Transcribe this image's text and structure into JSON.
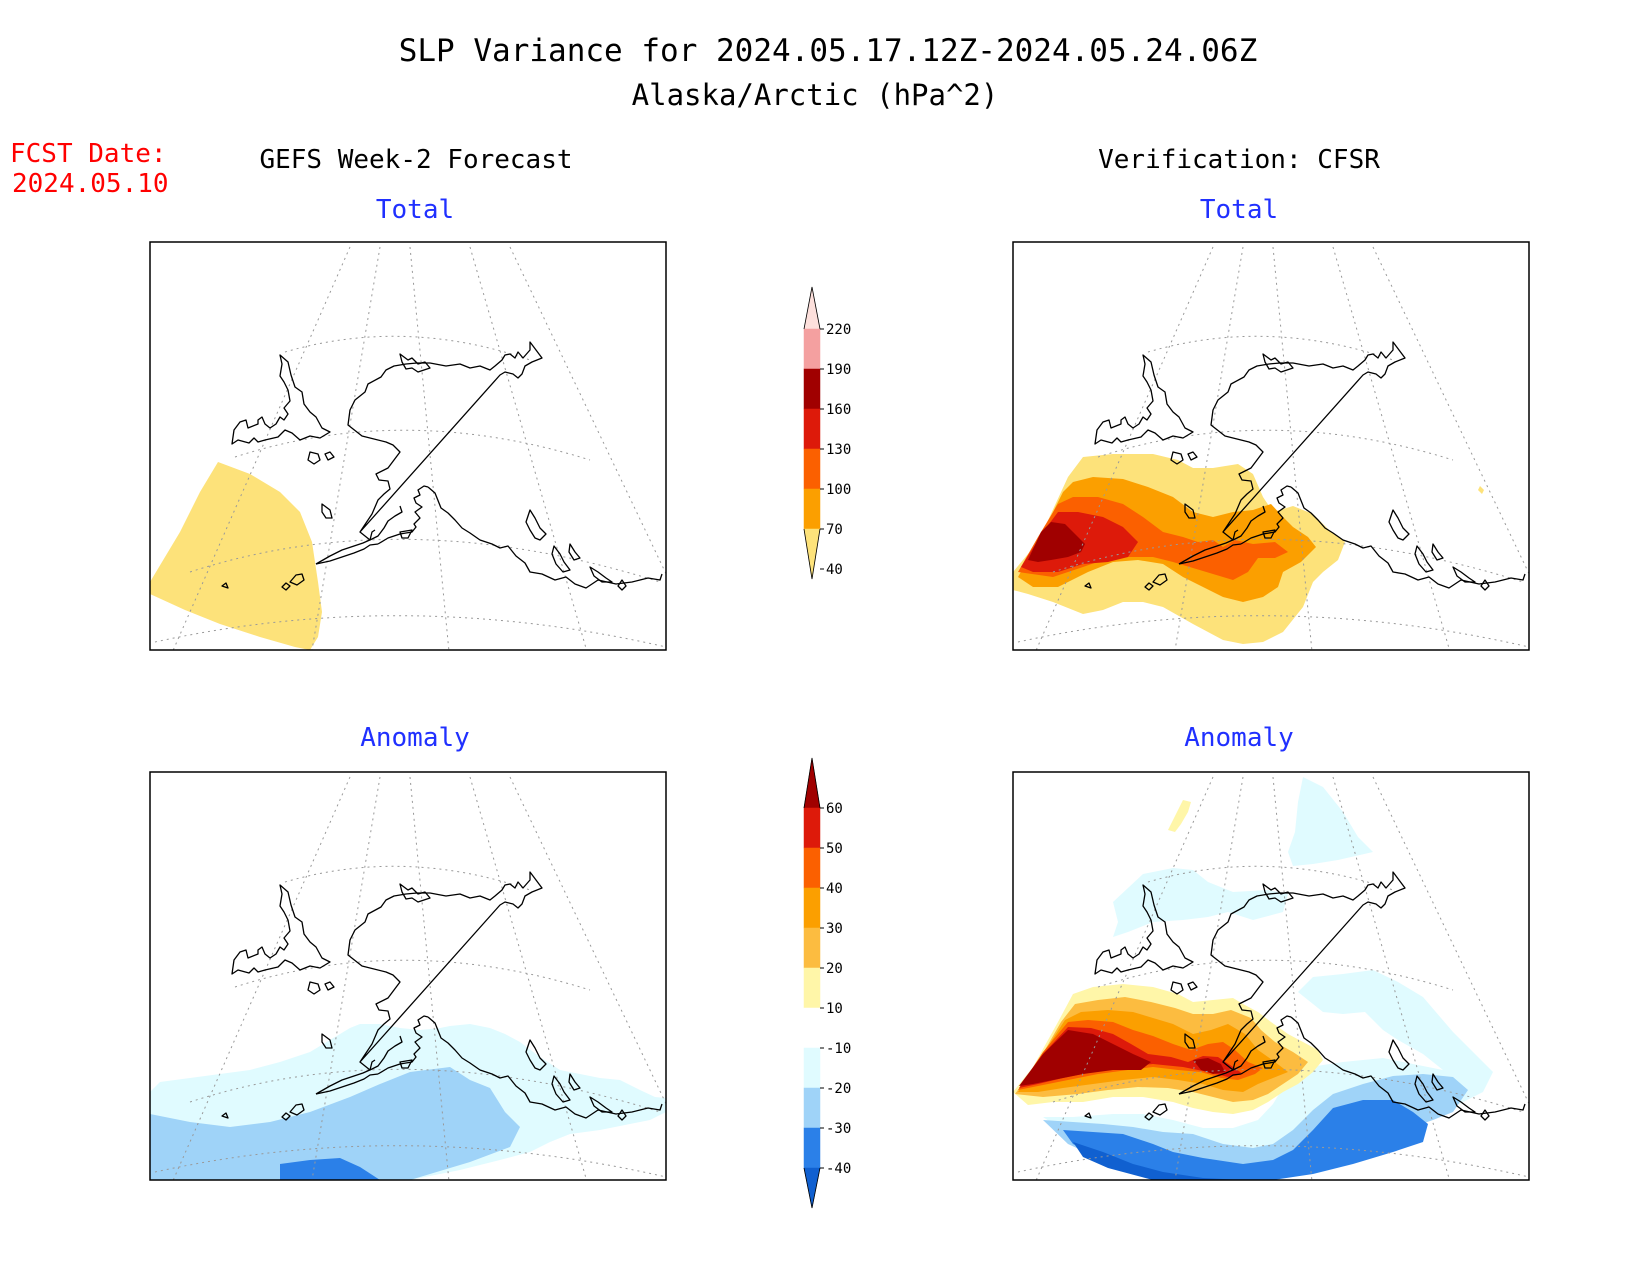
{
  "title": "SLP Variance for 2024.05.17.12Z-2024.05.24.06Z",
  "subtitle": "Alaska/Arctic (hPa^2)",
  "fcst_label": "FCST Date:",
  "fcst_date": "2024.05.10",
  "columns": {
    "left": "GEFS Week-2 Forecast",
    "right": "Verification: CFSR"
  },
  "panels": {
    "forecast_total_title": "Total",
    "forecast_anomaly_title": "Anomaly",
    "verification_total_title": "Total",
    "verification_anomaly_title": "Anomaly"
  },
  "colorbars": {
    "total": {
      "ticks": [
        "220",
        "190",
        "160",
        "130",
        "100",
        "70",
        "40"
      ],
      "colors": [
        "#fde0dc",
        "#f4a0a0",
        "#a00000",
        "#dd1a0a",
        "#fb6000",
        "#fb9f00",
        "#fde27a"
      ]
    },
    "anomaly": {
      "ticks": [
        "60",
        "50",
        "40",
        "30",
        "20",
        "10",
        "-10",
        "-20",
        "-30",
        "-40"
      ],
      "colors": [
        "#a00000",
        "#dd1a0a",
        "#fb6000",
        "#fb9f00",
        "#fcbc40",
        "#fff6a8",
        "#ffffff",
        "#e0fbff",
        "#9fd3f8",
        "#2b80e8",
        "#1060d0"
      ]
    }
  },
  "colors": {
    "title_text": "#000000",
    "fcst_text": "#ff0000",
    "panel_title_text": "#2030ff",
    "coast": "#000000",
    "grid": "#999999"
  }
}
